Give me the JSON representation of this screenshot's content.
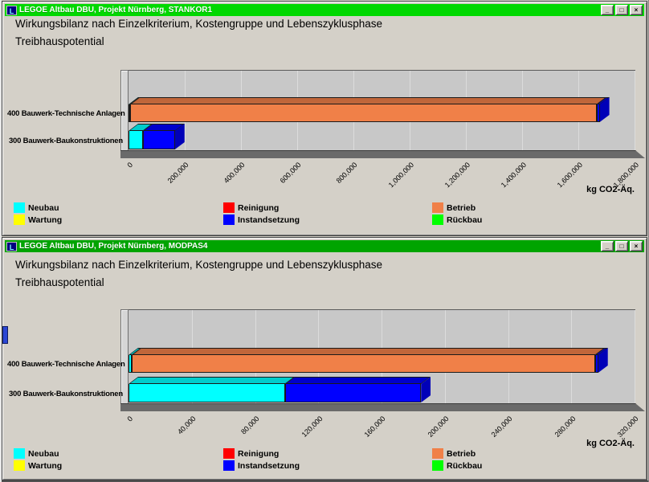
{
  "app": {
    "icon_letter": "L"
  },
  "window_controls": {
    "minimize": "_",
    "maximize": "□",
    "close": "×"
  },
  "phase_colors": {
    "Neubau": "#00ffff",
    "Wartung": "#ffff00",
    "Reinigung": "#ff0000",
    "Instandsetzung": "#0000ff",
    "Betrieb": "#f08048",
    "Rückbau": "#00ff00"
  },
  "legend": {
    "items": [
      {
        "label": "Neubau",
        "phase": "Neubau"
      },
      {
        "label": "Wartung",
        "phase": "Wartung"
      },
      {
        "label": "Reinigung",
        "phase": "Reinigung"
      },
      {
        "label": "Instandsetzung",
        "phase": "Instandsetzung"
      },
      {
        "label": "Betrieb",
        "phase": "Betrieb"
      },
      {
        "label": "Rückbau",
        "phase": "Rückbau"
      }
    ]
  },
  "windows": [
    {
      "title": "LEGOE Altbau DBU, Projekt Nürnberg, STANKOR1",
      "titlebar_color": "#00d800",
      "heading": "Wirkungsbilanz nach Einzelkriterium, Kostengruppe und Lebenszyklusphase",
      "subheading": "Treibhauspotential",
      "chart_data": {
        "type": "bar",
        "orientation": "horizontal_stacked_3d",
        "unit": "kg CO2-Äq.",
        "xlim": [
          0,
          1800000
        ],
        "xticks": [
          0,
          200000,
          400000,
          600000,
          800000,
          1000000,
          1200000,
          1400000,
          1600000,
          1800000
        ],
        "xtick_labels": [
          "0",
          "200,000",
          "400,000",
          "600,000",
          "800,000",
          "1,000,000",
          "1,200,000",
          "1,400,000",
          "1,600,000",
          "1,800,000"
        ],
        "categories": [
          "400 Bauwerk-Technische Anlagen",
          "300 Bauwerk-Baukonstruktionen"
        ],
        "series": [
          {
            "name": "Neubau",
            "values": [
              6000,
              50000
            ]
          },
          {
            "name": "Betrieb",
            "values": [
              1660000,
              0
            ]
          },
          {
            "name": "Instandsetzung",
            "values": [
              10000,
              115000
            ]
          }
        ],
        "totals": [
          1676000,
          165000
        ]
      }
    },
    {
      "title": "LEGOE Altbau DBU, Projekt Nürnberg, MODPAS4",
      "titlebar_color": "#00a400",
      "heading": "Wirkungsbilanz nach Einzelkriterium, Kostengruppe und Lebenszyklusphase",
      "subheading": "Treibhauspotential",
      "chart_data": {
        "type": "bar",
        "orientation": "horizontal_stacked_3d",
        "unit": "kg CO2-Äq.",
        "xlim": [
          0,
          320000
        ],
        "xticks": [
          0,
          40000,
          80000,
          120000,
          160000,
          200000,
          240000,
          280000,
          320000
        ],
        "xtick_labels": [
          "0",
          "40,000",
          "80,000",
          "120,000",
          "160,000",
          "200,000",
          "240,000",
          "280,000",
          "320,000"
        ],
        "categories": [
          "400 Bauwerk-Technische Anlagen",
          "300 Bauwerk-Baukonstruktionen"
        ],
        "series": [
          {
            "name": "Neubau",
            "values": [
              2000,
              99000
            ]
          },
          {
            "name": "Betrieb",
            "values": [
              293000,
              0
            ]
          },
          {
            "name": "Instandsetzung",
            "values": [
              2000,
              86000
            ]
          }
        ],
        "totals": [
          297000,
          185000
        ]
      }
    }
  ]
}
